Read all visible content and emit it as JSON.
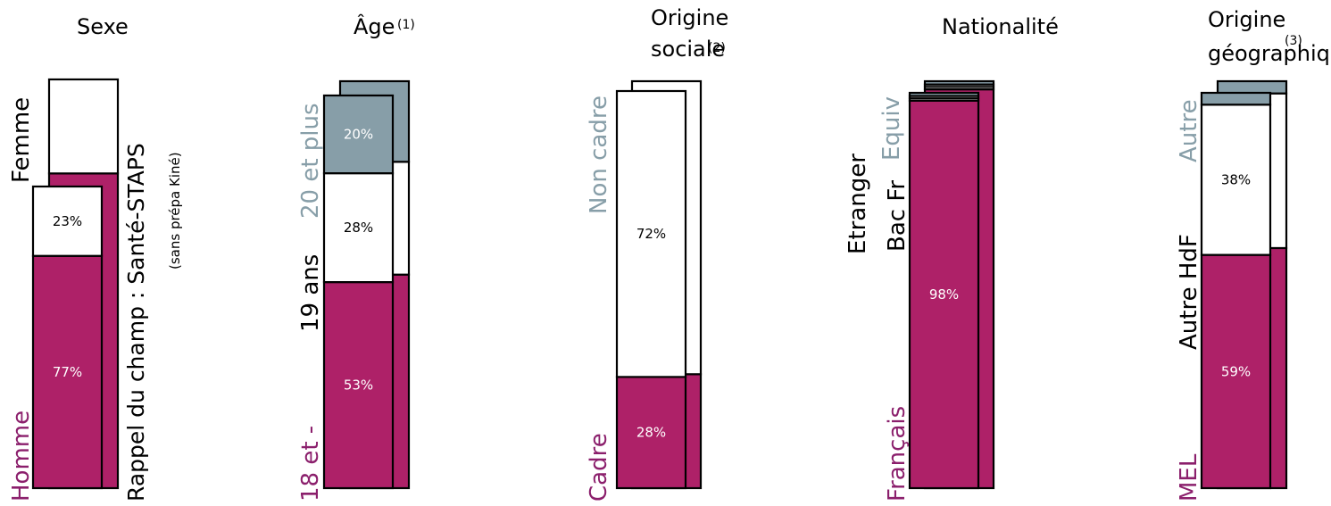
{
  "colors": {
    "magenta": "#AE2168",
    "grey": "#879EA8",
    "white": "#FFFFFF",
    "outline": "#000000"
  },
  "field_note": {
    "main": "Rappel du champ : Santé-STAPS",
    "sub": "(sans prépa Kiné)"
  },
  "chart_data": [
    {
      "type": "stacked-bar",
      "title": [
        "Sexe"
      ],
      "note": "",
      "segments": [
        {
          "label": "Homme",
          "value": 77,
          "value_label": "77%",
          "color": "magenta",
          "label_color": "#8B1F6C"
        },
        {
          "label": "Femme",
          "value": 23,
          "value_label": "23%",
          "color": "white",
          "label_color": "#000000"
        }
      ]
    },
    {
      "type": "stacked-bar",
      "title": [
        "Âge"
      ],
      "note": "(1)",
      "segments": [
        {
          "label": "18 et -",
          "value": 53,
          "value_label": "53%",
          "color": "magenta",
          "label_color": "#8B1F6C"
        },
        {
          "label": "19 ans",
          "value": 28,
          "value_label": "28%",
          "color": "white",
          "label_color": "#000000"
        },
        {
          "label": "20 et plus",
          "value": 20,
          "value_label": "20%",
          "color": "grey",
          "label_color": "#879EA8"
        }
      ]
    },
    {
      "type": "stacked-bar",
      "title": [
        "Origine",
        "sociale"
      ],
      "note": "(2)",
      "segments": [
        {
          "label": "Cadre",
          "value": 28,
          "value_label": "28%",
          "color": "magenta",
          "label_color": "#8B1F6C"
        },
        {
          "label": "Non cadre",
          "value": 72,
          "value_label": "72%",
          "color": "white",
          "label_color": "#879EA8"
        }
      ]
    },
    {
      "type": "stacked-bar",
      "title": [
        "Nationalité"
      ],
      "note": "",
      "segments": [
        {
          "label": "Français",
          "value": 98,
          "value_label": "98%",
          "color": "magenta",
          "label_color": "#8B1F6C"
        },
        {
          "label": "Bac Fr",
          "value": 0.6,
          "value_label": "",
          "color": "white",
          "label_color": "#000000"
        },
        {
          "label": "Etranger",
          "value": 0.6,
          "value_label": "",
          "color": "white",
          "label_color": "#000000"
        },
        {
          "label": "Equiv",
          "value": 0.8,
          "value_label": "",
          "color": "grey",
          "label_color": "#879EA8"
        }
      ]
    },
    {
      "type": "stacked-bar",
      "title": [
        "Origine",
        "géographique"
      ],
      "note": "(3)",
      "segments": [
        {
          "label": "MEL",
          "value": 59,
          "value_label": "59%",
          "color": "magenta",
          "label_color": "#8B1F6C"
        },
        {
          "label": "Autre HdF",
          "value": 38,
          "value_label": "38%",
          "color": "white",
          "label_color": "#000000"
        },
        {
          "label": "Autre",
          "value": 3,
          "value_label": "",
          "color": "grey",
          "label_color": "#879EA8"
        }
      ]
    }
  ]
}
